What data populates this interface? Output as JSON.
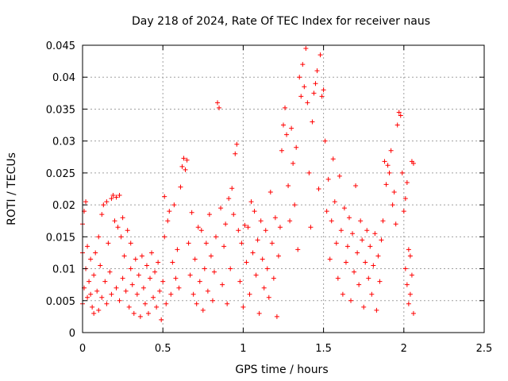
{
  "chart_data": {
    "type": "scatter",
    "title": "Day 218 of 2024, Rate Of TEC Index for receiver naus",
    "xlabel": "GPS time / hours",
    "ylabel": "ROTI / TECUs",
    "xlim": [
      0,
      2.5
    ],
    "ylim": [
      0,
      0.045
    ],
    "xticks": [
      0,
      0.5,
      1,
      1.5,
      2,
      2.5
    ],
    "xtick_labels": [
      "0",
      "0.5",
      "1",
      "1.5",
      "2",
      "2.5"
    ],
    "yticks": [
      0,
      0.005,
      0.01,
      0.015,
      0.02,
      0.025,
      0.03,
      0.035,
      0.04,
      0.045
    ],
    "ytick_labels": [
      "0",
      "0.005",
      "0.01",
      "0.015",
      "0.02",
      "0.025",
      "0.03",
      "0.035",
      "0.04",
      "0.045"
    ],
    "grid": true,
    "marker": "+",
    "color": "#ff0000",
    "series": [
      {
        "name": "ROTI",
        "points": [
          [
            0.0,
            0.0045
          ],
          [
            0.0,
            0.017
          ],
          [
            0.0,
            0.0125
          ],
          [
            0.01,
            0.019
          ],
          [
            0.01,
            0.007
          ],
          [
            0.02,
            0.0205
          ],
          [
            0.02,
            0.01
          ],
          [
            0.03,
            0.0055
          ],
          [
            0.03,
            0.0135
          ],
          [
            0.04,
            0.008
          ],
          [
            0.05,
            0.006
          ],
          [
            0.05,
            0.0115
          ],
          [
            0.06,
            0.004
          ],
          [
            0.07,
            0.009
          ],
          [
            0.07,
            0.003
          ],
          [
            0.08,
            0.0125
          ],
          [
            0.09,
            0.0065
          ],
          [
            0.1,
            0.0035
          ],
          [
            0.1,
            0.015
          ],
          [
            0.11,
            0.0105
          ],
          [
            0.12,
            0.0185
          ],
          [
            0.12,
            0.0055
          ],
          [
            0.13,
            0.02
          ],
          [
            0.14,
            0.008
          ],
          [
            0.15,
            0.0205
          ],
          [
            0.15,
            0.0045
          ],
          [
            0.16,
            0.014
          ],
          [
            0.17,
            0.0095
          ],
          [
            0.18,
            0.021
          ],
          [
            0.18,
            0.006
          ],
          [
            0.19,
            0.0215
          ],
          [
            0.2,
            0.0175
          ],
          [
            0.21,
            0.0212
          ],
          [
            0.21,
            0.007
          ],
          [
            0.22,
            0.0165
          ],
          [
            0.23,
            0.0215
          ],
          [
            0.23,
            0.005
          ],
          [
            0.24,
            0.015
          ],
          [
            0.25,
            0.018
          ],
          [
            0.25,
            0.0085
          ],
          [
            0.26,
            0.012
          ],
          [
            0.27,
            0.0065
          ],
          [
            0.28,
            0.016
          ],
          [
            0.29,
            0.004
          ],
          [
            0.3,
            0.01
          ],
          [
            0.3,
            0.014
          ],
          [
            0.31,
            0.0075
          ],
          [
            0.32,
            0.003
          ],
          [
            0.33,
            0.0115
          ],
          [
            0.34,
            0.006
          ],
          [
            0.35,
            0.009
          ],
          [
            0.36,
            0.0025
          ],
          [
            0.37,
            0.012
          ],
          [
            0.38,
            0.007
          ],
          [
            0.39,
            0.0045
          ],
          [
            0.4,
            0.0105
          ],
          [
            0.41,
            0.003
          ],
          [
            0.42,
            0.0085
          ],
          [
            0.43,
            0.0125
          ],
          [
            0.44,
            0.0055
          ],
          [
            0.45,
            0.0095
          ],
          [
            0.46,
            0.004
          ],
          [
            0.47,
            0.011
          ],
          [
            0.48,
            0.0065
          ],
          [
            0.49,
            0.002
          ],
          [
            0.5,
            0.008
          ],
          [
            0.51,
            0.015
          ],
          [
            0.51,
            0.0213
          ],
          [
            0.52,
            0.0045
          ],
          [
            0.53,
            0.0175
          ],
          [
            0.54,
            0.019
          ],
          [
            0.55,
            0.006
          ],
          [
            0.56,
            0.011
          ],
          [
            0.57,
            0.02
          ],
          [
            0.58,
            0.0085
          ],
          [
            0.59,
            0.013
          ],
          [
            0.6,
            0.007
          ],
          [
            0.61,
            0.0228
          ],
          [
            0.62,
            0.026
          ],
          [
            0.63,
            0.0273
          ],
          [
            0.64,
            0.0255
          ],
          [
            0.65,
            0.027
          ],
          [
            0.66,
            0.014
          ],
          [
            0.67,
            0.009
          ],
          [
            0.68,
            0.0188
          ],
          [
            0.69,
            0.006
          ],
          [
            0.7,
            0.0115
          ],
          [
            0.71,
            0.0045
          ],
          [
            0.72,
            0.0165
          ],
          [
            0.73,
            0.008
          ],
          [
            0.74,
            0.016
          ],
          [
            0.75,
            0.0035
          ],
          [
            0.76,
            0.01
          ],
          [
            0.77,
            0.014
          ],
          [
            0.78,
            0.0065
          ],
          [
            0.79,
            0.0185
          ],
          [
            0.8,
            0.012
          ],
          [
            0.81,
            0.005
          ],
          [
            0.82,
            0.0095
          ],
          [
            0.83,
            0.015
          ],
          [
            0.84,
            0.036
          ],
          [
            0.85,
            0.0352
          ],
          [
            0.86,
            0.0195
          ],
          [
            0.87,
            0.0075
          ],
          [
            0.88,
            0.0135
          ],
          [
            0.89,
            0.017
          ],
          [
            0.9,
            0.0045
          ],
          [
            0.91,
            0.021
          ],
          [
            0.92,
            0.01
          ],
          [
            0.93,
            0.0226
          ],
          [
            0.94,
            0.0185
          ],
          [
            0.95,
            0.028
          ],
          [
            0.96,
            0.0295
          ],
          [
            0.97,
            0.016
          ],
          [
            0.98,
            0.008
          ],
          [
            0.99,
            0.014
          ],
          [
            1.0,
            0.004
          ],
          [
            1.01,
            0.0168
          ],
          [
            1.02,
            0.011
          ],
          [
            1.03,
            0.0165
          ],
          [
            1.04,
            0.006
          ],
          [
            1.05,
            0.0205
          ],
          [
            1.06,
            0.0125
          ],
          [
            1.07,
            0.019
          ],
          [
            1.08,
            0.009
          ],
          [
            1.09,
            0.0145
          ],
          [
            1.1,
            0.003
          ],
          [
            1.11,
            0.0175
          ],
          [
            1.12,
            0.0115
          ],
          [
            1.13,
            0.007
          ],
          [
            1.14,
            0.016
          ],
          [
            1.15,
            0.01
          ],
          [
            1.16,
            0.0055
          ],
          [
            1.17,
            0.022
          ],
          [
            1.18,
            0.014
          ],
          [
            1.19,
            0.0085
          ],
          [
            1.2,
            0.018
          ],
          [
            1.21,
            0.0025
          ],
          [
            1.22,
            0.012
          ],
          [
            1.23,
            0.0165
          ],
          [
            1.24,
            0.0285
          ],
          [
            1.25,
            0.0325
          ],
          [
            1.26,
            0.0352
          ],
          [
            1.27,
            0.031
          ],
          [
            1.28,
            0.023
          ],
          [
            1.29,
            0.0175
          ],
          [
            1.3,
            0.032
          ],
          [
            1.31,
            0.0265
          ],
          [
            1.32,
            0.02
          ],
          [
            1.33,
            0.029
          ],
          [
            1.34,
            0.013
          ],
          [
            1.35,
            0.04
          ],
          [
            1.36,
            0.037
          ],
          [
            1.37,
            0.042
          ],
          [
            1.38,
            0.0385
          ],
          [
            1.39,
            0.0445
          ],
          [
            1.4,
            0.036
          ],
          [
            1.41,
            0.025
          ],
          [
            1.42,
            0.0165
          ],
          [
            1.43,
            0.033
          ],
          [
            1.44,
            0.0375
          ],
          [
            1.45,
            0.039
          ],
          [
            1.46,
            0.041
          ],
          [
            1.47,
            0.0225
          ],
          [
            1.48,
            0.0435
          ],
          [
            1.49,
            0.037
          ],
          [
            1.5,
            0.038
          ],
          [
            1.51,
            0.03
          ],
          [
            1.52,
            0.019
          ],
          [
            1.53,
            0.024
          ],
          [
            1.54,
            0.0115
          ],
          [
            1.55,
            0.0175
          ],
          [
            1.56,
            0.0272
          ],
          [
            1.57,
            0.0205
          ],
          [
            1.58,
            0.014
          ],
          [
            1.59,
            0.0085
          ],
          [
            1.6,
            0.0245
          ],
          [
            1.61,
            0.016
          ],
          [
            1.62,
            0.006
          ],
          [
            1.63,
            0.0195
          ],
          [
            1.64,
            0.011
          ],
          [
            1.65,
            0.0135
          ],
          [
            1.66,
            0.018
          ],
          [
            1.67,
            0.005
          ],
          [
            1.68,
            0.0155
          ],
          [
            1.69,
            0.0095
          ],
          [
            1.7,
            0.023
          ],
          [
            1.71,
            0.0125
          ],
          [
            1.72,
            0.0075
          ],
          [
            1.73,
            0.0175
          ],
          [
            1.74,
            0.0145
          ],
          [
            1.75,
            0.004
          ],
          [
            1.76,
            0.011
          ],
          [
            1.77,
            0.016
          ],
          [
            1.78,
            0.0085
          ],
          [
            1.79,
            0.0135
          ],
          [
            1.8,
            0.006
          ],
          [
            1.81,
            0.0105
          ],
          [
            1.82,
            0.0155
          ],
          [
            1.83,
            0.0035
          ],
          [
            1.84,
            0.012
          ],
          [
            1.85,
            0.008
          ],
          [
            1.86,
            0.0145
          ],
          [
            1.87,
            0.0175
          ],
          [
            1.88,
            0.0268
          ],
          [
            1.89,
            0.0232
          ],
          [
            1.9,
            0.0262
          ],
          [
            1.91,
            0.025
          ],
          [
            1.92,
            0.0285
          ],
          [
            1.93,
            0.02
          ],
          [
            1.94,
            0.022
          ],
          [
            1.95,
            0.017
          ],
          [
            1.96,
            0.0325
          ],
          [
            1.97,
            0.0345
          ],
          [
            1.98,
            0.034
          ],
          [
            1.99,
            0.025
          ],
          [
            2.0,
            0.019
          ],
          [
            2.01,
            0.021
          ],
          [
            2.02,
            0.0235
          ],
          [
            2.03,
            0.013
          ],
          [
            2.04,
            0.006
          ],
          [
            2.05,
            0.0268
          ],
          [
            2.06,
            0.0265
          ],
          [
            2.06,
            0.003
          ],
          [
            2.05,
            0.009
          ],
          [
            2.04,
            0.012
          ],
          [
            2.03,
            0.0045
          ],
          [
            2.02,
            0.0075
          ],
          [
            2.01,
            0.01
          ]
        ]
      }
    ]
  }
}
